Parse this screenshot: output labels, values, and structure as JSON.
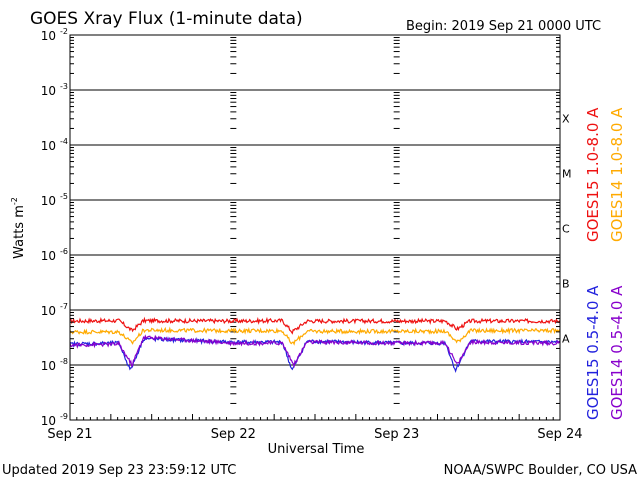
{
  "header": {
    "title": "GOES Xray Flux (1-minute data)",
    "begin": "Begin:  2019 Sep 21 0000 UTC"
  },
  "footer": {
    "updated": "Updated 2019 Sep 23 23:59:12 UTC",
    "credit": "NOAA/SWPC Boulder, CO USA"
  },
  "colors": {
    "goes15_long": "#ee1111",
    "goes14_long": "#ffaa00",
    "goes15_short": "#2222dd",
    "goes14_short": "#8800cc",
    "grid": "#000000",
    "background": "#ffffff"
  },
  "chart_data": {
    "type": "line",
    "title": "GOES Xray Flux (1-minute data)",
    "xlabel": "Universal Time",
    "ylabel": "Watts m",
    "ylabel_sup": "-2",
    "y_scale": "log",
    "ylim": [
      1e-09,
      0.01
    ],
    "y_ticks": [
      {
        "base": "10",
        "exp": "-2"
      },
      {
        "base": "10",
        "exp": "-3"
      },
      {
        "base": "10",
        "exp": "-4"
      },
      {
        "base": "10",
        "exp": "-5"
      },
      {
        "base": "10",
        "exp": "-6"
      },
      {
        "base": "10",
        "exp": "-7"
      },
      {
        "base": "10",
        "exp": "-8"
      },
      {
        "base": "10",
        "exp": "-9"
      }
    ],
    "x_ticks": [
      "Sep 21",
      "Sep 22",
      "Sep 23",
      "Sep 24"
    ],
    "flare_classes": [
      {
        "label": "X",
        "flux": 0.0001
      },
      {
        "label": "M",
        "flux": 1e-05
      },
      {
        "label": "C",
        "flux": 1e-06
      },
      {
        "label": "B",
        "flux": 1e-07
      },
      {
        "label": "A",
        "flux": 1e-08
      }
    ],
    "grid": true,
    "legend": "right",
    "series": [
      {
        "name": "GOES15 1.0-8.0 A",
        "color": "#ee1111",
        "x_days": [
          0,
          0.3,
          0.38,
          0.45,
          1,
          1.3,
          1.36,
          1.45,
          2,
          2.3,
          2.37,
          2.45,
          3
        ],
        "values": [
          6.3e-08,
          6.4e-08,
          4.2e-08,
          6.4e-08,
          6.3e-08,
          6.4e-08,
          4e-08,
          6.3e-08,
          6.3e-08,
          6.3e-08,
          4.5e-08,
          6.3e-08,
          6.3e-08
        ]
      },
      {
        "name": "GOES14 1.0-8.0 A",
        "color": "#ffaa00",
        "x_days": [
          0,
          0.3,
          0.38,
          0.45,
          1,
          1.3,
          1.36,
          1.45,
          2,
          2.3,
          2.37,
          2.45,
          3
        ],
        "values": [
          4e-08,
          4e-08,
          2.5e-08,
          4.3e-08,
          4.2e-08,
          4.2e-08,
          2.4e-08,
          4.1e-08,
          4.1e-08,
          4.1e-08,
          2.6e-08,
          4.2e-08,
          4.2e-08
        ]
      },
      {
        "name": "GOES15 0.5-4.0 A",
        "color": "#2222dd",
        "x_days": [
          0,
          0.3,
          0.37,
          0.45,
          1,
          1.3,
          1.36,
          1.45,
          2,
          2.3,
          2.36,
          2.45,
          3
        ],
        "values": [
          2.4e-08,
          2.5e-08,
          8e-09,
          3e-08,
          2.6e-08,
          2.6e-08,
          8e-09,
          2.7e-08,
          2.5e-08,
          2.5e-08,
          8e-09,
          2.7e-08,
          2.6e-08
        ]
      },
      {
        "name": "GOES14 0.5-4.0 A",
        "color": "#8800cc",
        "x_days": [
          0,
          0.3,
          0.38,
          0.45,
          1,
          1.3,
          1.37,
          1.45,
          2,
          2.3,
          2.37,
          2.45,
          3
        ],
        "values": [
          2.3e-08,
          2.4e-08,
          1e-08,
          3.2e-08,
          2.5e-08,
          2.5e-08,
          1e-08,
          2.6e-08,
          2.5e-08,
          2.5e-08,
          1e-08,
          2.6e-08,
          2.5e-08
        ]
      }
    ]
  }
}
